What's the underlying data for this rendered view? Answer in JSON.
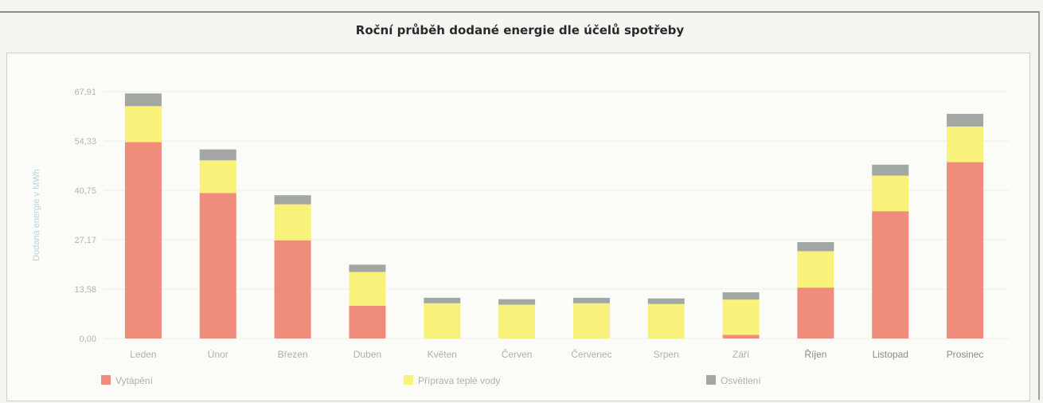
{
  "chart_data": {
    "type": "bar",
    "stacked": true,
    "title": "Roční průběh dodané energie dle účelů spotřeby",
    "xlabel": "",
    "ylabel": "Dodaná energie v MWh",
    "yticks": [
      "0,00",
      "13,58",
      "27,17",
      "40,75",
      "54,33",
      "67,91"
    ],
    "ylim": [
      0,
      67.91
    ],
    "grid": true,
    "legend_position": "bottom",
    "categories": [
      "Leden",
      "Únor",
      "Březen",
      "Duben",
      "Květen",
      "Červen",
      "Červenec",
      "Srpen",
      "Září",
      "Říjen",
      "Listopad",
      "Prosinec"
    ],
    "series": [
      {
        "name": "Vytápění",
        "color": "#f08c7c",
        "values": [
          54.0,
          40.0,
          27.0,
          9.0,
          0.0,
          0.0,
          0.0,
          0.0,
          1.0,
          14.0,
          35.0,
          48.5
        ]
      },
      {
        "name": "Příprava teplé vody",
        "color": "#f8f27a",
        "values": [
          9.9,
          9.0,
          9.9,
          9.3,
          9.7,
          9.3,
          9.7,
          9.5,
          9.7,
          10.0,
          9.8,
          9.8
        ]
      },
      {
        "name": "Osvětlení",
        "color": "#a3a7a4",
        "values": [
          3.5,
          3.0,
          2.5,
          2.0,
          1.5,
          1.5,
          1.5,
          1.5,
          2.0,
          2.5,
          3.0,
          3.5
        ]
      }
    ]
  }
}
